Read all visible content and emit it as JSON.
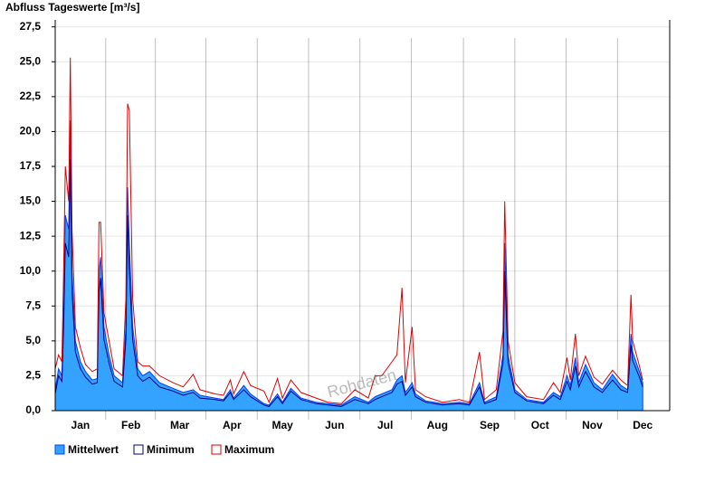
{
  "chart_data": {
    "type": "area",
    "title": "Abfluss Tageswerte [m³/s]",
    "watermark": "Rohdaten",
    "x": [
      0,
      2,
      4,
      5,
      6,
      8,
      9,
      10,
      12,
      15,
      18,
      22,
      25,
      26,
      27,
      29,
      32,
      35,
      40,
      42,
      43,
      44,
      46,
      49,
      52,
      56,
      62,
      70,
      76,
      82,
      86,
      95,
      100,
      104,
      106,
      112,
      116,
      124,
      127,
      132,
      135,
      140,
      146,
      155,
      162,
      170,
      178,
      186,
      190,
      194,
      200,
      203,
      206,
      208,
      212,
      214,
      220,
      230,
      240,
      246,
      252,
      255,
      262,
      266,
      267,
      269,
      273,
      280,
      290,
      296,
      300,
      304,
      306,
      309,
      311,
      315,
      320,
      325,
      331,
      336,
      340,
      342,
      343,
      347,
      349
    ],
    "series": [
      {
        "name": "Mittelwert",
        "color": "#33a3ff",
        "values": [
          1.5,
          3,
          2.5,
          7,
          14,
          13,
          20.8,
          10,
          5,
          3.5,
          2.8,
          2.2,
          2.3,
          10,
          11,
          6,
          4,
          2.5,
          2,
          6,
          16,
          12,
          6,
          3,
          2.5,
          2.8,
          2,
          1.6,
          1.3,
          1.5,
          1.1,
          0.9,
          0.8,
          1.5,
          0.9,
          1.8,
          1.2,
          0.5,
          0.4,
          1.2,
          0.6,
          1.6,
          0.9,
          0.6,
          0.5,
          0.4,
          1,
          0.6,
          1,
          1.2,
          1.5,
          2.2,
          2.5,
          1.3,
          2,
          1.2,
          0.7,
          0.5,
          0.6,
          0.5,
          2,
          0.6,
          1,
          4,
          12,
          4,
          1.5,
          0.8,
          0.6,
          1.3,
          1,
          2.5,
          1.8,
          3.8,
          2,
          3.3,
          2,
          1.5,
          2.6,
          1.8,
          1.5,
          5.5,
          4.2,
          2.8,
          2
        ]
      },
      {
        "name": "Minimum",
        "color": "#000080",
        "values": [
          1.2,
          2.5,
          2.1,
          6,
          12,
          11,
          18,
          8.5,
          4.2,
          3,
          2.4,
          1.9,
          2,
          8.5,
          9.5,
          5.1,
          3.4,
          2.1,
          1.7,
          5.1,
          14,
          10,
          5.1,
          2.5,
          2.1,
          2.4,
          1.7,
          1.4,
          1.1,
          1.3,
          0.9,
          0.8,
          0.7,
          1.3,
          0.8,
          1.5,
          1,
          0.4,
          0.3,
          1,
          0.5,
          1.4,
          0.8,
          0.5,
          0.4,
          0.3,
          0.8,
          0.5,
          0.8,
          1,
          1.3,
          1.9,
          2.1,
          1.1,
          1.7,
          1,
          0.6,
          0.4,
          0.5,
          0.4,
          1.7,
          0.5,
          0.8,
          3.4,
          10,
          3.4,
          1.3,
          0.7,
          0.5,
          1.1,
          0.8,
          2.1,
          1.5,
          3.2,
          1.7,
          2.8,
          1.7,
          1.3,
          2.2,
          1.5,
          1.3,
          4.7,
          3.6,
          2.4,
          1.7
        ]
      },
      {
        "name": "Maximum",
        "color": "#e00000",
        "values": [
          3,
          4,
          3.5,
          10,
          17.5,
          15,
          25.3,
          13,
          6,
          4.5,
          3.3,
          2.8,
          3,
          13.5,
          13.5,
          7,
          5,
          3,
          2.5,
          8,
          22,
          21.5,
          8,
          3.5,
          3.2,
          3.2,
          2.5,
          2,
          1.7,
          2.6,
          1.5,
          1.2,
          1.1,
          2.2,
          1.2,
          2.8,
          1.8,
          1.4,
          0.6,
          2.3,
          0.9,
          2.2,
          1.3,
          0.9,
          0.6,
          0.5,
          1.5,
          0.9,
          2.5,
          2.5,
          3.5,
          4,
          8.8,
          2,
          6,
          1.5,
          1,
          0.6,
          0.8,
          0.6,
          4.2,
          0.8,
          1.5,
          5.7,
          15,
          5,
          2,
          1,
          0.8,
          2,
          1.3,
          3.8,
          2.2,
          5.5,
          2.5,
          3.9,
          2.4,
          1.9,
          2.9,
          2.2,
          1.8,
          8.3,
          5,
          3.2,
          2.2
        ]
      }
    ],
    "xlim": [
      0,
      365
    ],
    "xticks": [
      {
        "value": 15,
        "label": "Jan"
      },
      {
        "value": 45,
        "label": "Feb"
      },
      {
        "value": 74,
        "label": "Mar"
      },
      {
        "value": 105,
        "label": "Apr"
      },
      {
        "value": 135,
        "label": "May"
      },
      {
        "value": 166,
        "label": "Jun"
      },
      {
        "value": 196,
        "label": "Jul"
      },
      {
        "value": 227,
        "label": "Aug"
      },
      {
        "value": 258,
        "label": "Sep"
      },
      {
        "value": 288,
        "label": "Oct"
      },
      {
        "value": 319,
        "label": "Nov"
      },
      {
        "value": 349,
        "label": "Dec"
      }
    ],
    "ylim": [
      0,
      28
    ],
    "yticks": [
      {
        "value": 0,
        "label": "0,0"
      },
      {
        "value": 2.5,
        "label": "2,5"
      },
      {
        "value": 5,
        "label": "5,0"
      },
      {
        "value": 7.5,
        "label": "7,5"
      },
      {
        "value": 10,
        "label": "10,0"
      },
      {
        "value": 12.5,
        "label": "12,5"
      },
      {
        "value": 15,
        "label": "15,0"
      },
      {
        "value": 17.5,
        "label": "17,5"
      },
      {
        "value": 20,
        "label": "20,0"
      },
      {
        "value": 22.5,
        "label": "22,5"
      },
      {
        "value": 25,
        "label": "25,0"
      },
      {
        "value": 27.5,
        "label": "27,5"
      }
    ],
    "grid": true
  }
}
